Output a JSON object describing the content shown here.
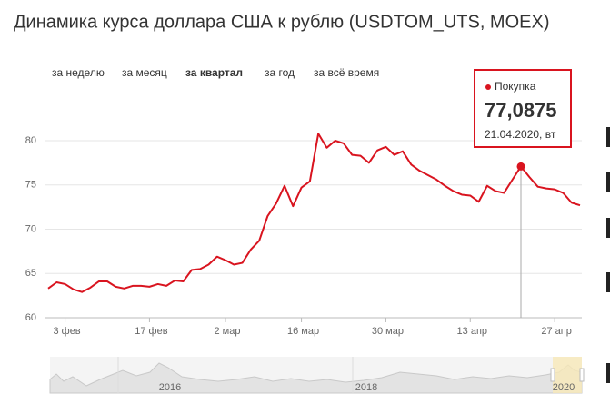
{
  "chart_data": {
    "type": "line",
    "title": "Динамика курса доллара США к рублю (USDTOM_UTS, MOEX)",
    "tabs": [
      "за неделю",
      "за месяц",
      "за квартал",
      "за год",
      "за всё время"
    ],
    "active_tab": 2,
    "categories": [
      null,
      null,
      "3 фев",
      null,
      null,
      null,
      null,
      null,
      null,
      null,
      null,
      null,
      "17 фев",
      null,
      null,
      null,
      null,
      null,
      null,
      null,
      null,
      "2 мар",
      null,
      null,
      null,
      null,
      null,
      null,
      null,
      null,
      "16 мар",
      null,
      null,
      null,
      null,
      null,
      null,
      null,
      null,
      null,
      "30 мар",
      null,
      null,
      null,
      null,
      null,
      null,
      null,
      null,
      null,
      "13 апр",
      null,
      null,
      null,
      null,
      null,
      null,
      null,
      null,
      null,
      "27 апр",
      null,
      null,
      null
    ],
    "series": [
      {
        "name": "Покупка",
        "color": "#d9141f",
        "values": [
          63.3,
          64.0,
          63.8,
          63.2,
          62.9,
          63.4,
          64.1,
          64.1,
          63.5,
          63.3,
          63.6,
          63.6,
          63.5,
          63.8,
          63.6,
          64.2,
          64.1,
          65.4,
          65.5,
          66.0,
          66.9,
          66.5,
          66.0,
          66.2,
          67.7,
          68.7,
          71.5,
          72.9,
          74.9,
          72.6,
          74.7,
          75.4,
          80.8,
          79.2,
          80.0,
          79.7,
          78.4,
          78.3,
          77.5,
          78.9,
          79.3,
          78.4,
          78.8,
          77.3,
          76.6,
          76.1,
          75.6,
          74.9,
          74.3,
          73.9,
          73.8,
          73.1,
          74.9,
          74.3,
          74.1,
          75.6,
          77.0875,
          75.9,
          74.8,
          74.6,
          74.5,
          74.1,
          73.0,
          72.7
        ]
      }
    ],
    "tooltip": {
      "value": "77,0875",
      "date": "21.04.2020, вт"
    },
    "ylim": [
      60,
      85
    ],
    "yticks": [
      60,
      65,
      70,
      75,
      80
    ],
    "grid": true,
    "navigator": {
      "labels": [
        "2016",
        "2018",
        "2020"
      ]
    }
  }
}
